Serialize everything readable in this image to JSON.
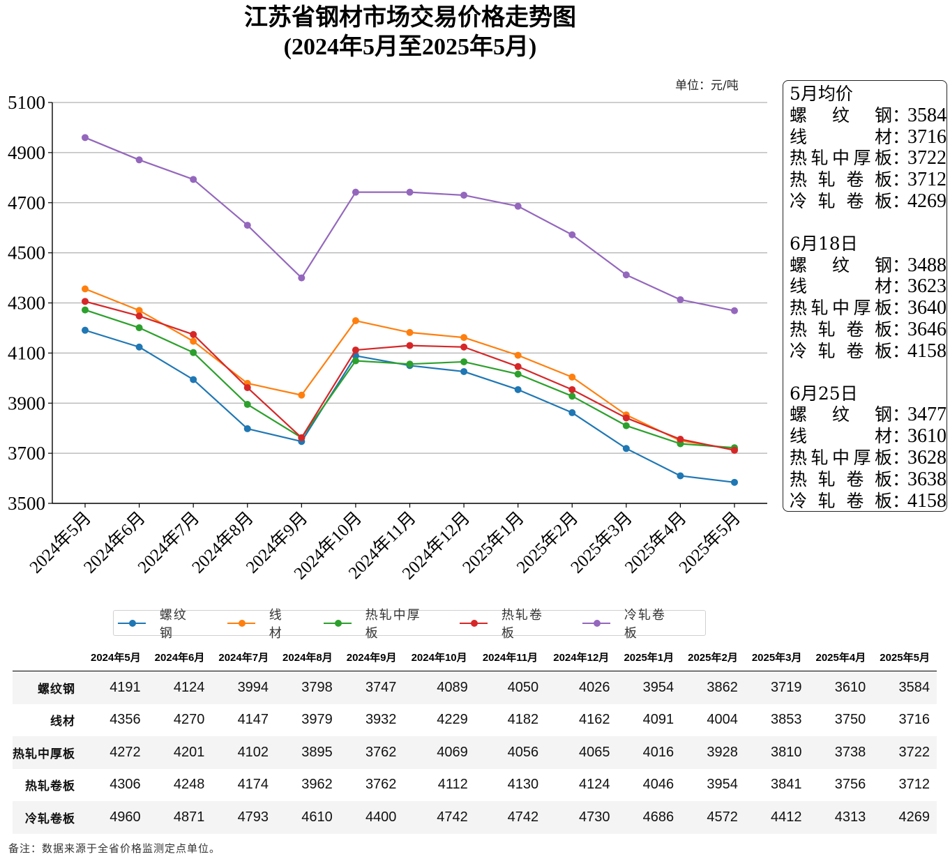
{
  "chart_data": {
    "type": "line",
    "title": "江苏省钢材市场交易价格走势图",
    "subtitle": "(2024年5月至2025年5月)",
    "unit_label": "单位：元/吨",
    "xlabel": "",
    "ylabel": "",
    "ylim": [
      3500,
      5100
    ],
    "yticks": [
      3500,
      3700,
      3900,
      4100,
      4300,
      4500,
      4700,
      4900,
      5100
    ],
    "grid": "horizontal",
    "legend_position": "bottom",
    "categories": [
      "2024年5月",
      "2024年6月",
      "2024年7月",
      "2024年8月",
      "2024年9月",
      "2024年10月",
      "2024年11月",
      "2024年12月",
      "2025年1月",
      "2025年2月",
      "2025年3月",
      "2025年4月",
      "2025年5月"
    ],
    "series": [
      {
        "name": "螺纹钢",
        "color": "#1f77b4",
        "values": [
          4191,
          4124,
          3994,
          3798,
          3747,
          4089,
          4050,
          4026,
          3954,
          3862,
          3719,
          3610,
          3584
        ]
      },
      {
        "name": "线材",
        "color": "#ff7f0e",
        "values": [
          4356,
          4270,
          4147,
          3979,
          3932,
          4229,
          4182,
          4162,
          4091,
          4004,
          3853,
          3750,
          3716
        ]
      },
      {
        "name": "热轧中厚板",
        "color": "#2ca02c",
        "values": [
          4272,
          4201,
          4102,
          3895,
          3762,
          4069,
          4056,
          4065,
          4016,
          3928,
          3810,
          3738,
          3722
        ]
      },
      {
        "name": "热轧卷板",
        "color": "#d62728",
        "values": [
          4306,
          4248,
          4174,
          3962,
          3762,
          4112,
          4130,
          4124,
          4046,
          3954,
          3841,
          3756,
          3712
        ]
      },
      {
        "name": "冷轧卷板",
        "color": "#9467bd",
        "values": [
          4960,
          4871,
          4793,
          4610,
          4400,
          4742,
          4742,
          4730,
          4686,
          4572,
          4412,
          4313,
          4269
        ]
      }
    ]
  },
  "info_box": {
    "sections": [
      {
        "heading": "5月均价",
        "rows": [
          {
            "name": [
              "螺",
              "纹",
              "钢"
            ],
            "value": "3584"
          },
          {
            "name": [
              "线",
              "材"
            ],
            "value": "3716"
          },
          {
            "name": [
              "热",
              "轧",
              "中",
              "厚",
              "板"
            ],
            "value": "3722"
          },
          {
            "name": [
              "热",
              "轧",
              "卷",
              "板"
            ],
            "value": "3712"
          },
          {
            "name": [
              "冷",
              "轧",
              "卷",
              "板"
            ],
            "value": "4269"
          }
        ]
      },
      {
        "heading": "6月18日",
        "rows": [
          {
            "name": [
              "螺",
              "纹",
              "钢"
            ],
            "value": "3488"
          },
          {
            "name": [
              "线",
              "材"
            ],
            "value": "3623"
          },
          {
            "name": [
              "热",
              "轧",
              "中",
              "厚",
              "板"
            ],
            "value": "3640"
          },
          {
            "name": [
              "热",
              "轧",
              "卷",
              "板"
            ],
            "value": "3646"
          },
          {
            "name": [
              "冷",
              "轧",
              "卷",
              "板"
            ],
            "value": "4158"
          }
        ]
      },
      {
        "heading": "6月25日",
        "rows": [
          {
            "name": [
              "螺",
              "纹",
              "钢"
            ],
            "value": "3477"
          },
          {
            "name": [
              "线",
              "材"
            ],
            "value": "3610"
          },
          {
            "name": [
              "热",
              "轧",
              "中",
              "厚",
              "板"
            ],
            "value": "3628"
          },
          {
            "name": [
              "热",
              "轧",
              "卷",
              "板"
            ],
            "value": "3638"
          },
          {
            "name": [
              "冷",
              "轧",
              "卷",
              "板"
            ],
            "value": "4158"
          }
        ]
      }
    ],
    "colon": "："
  },
  "table": {
    "columns": [
      "2024年5月",
      "2024年6月",
      "2024年7月",
      "2024年8月",
      "2024年9月",
      "2024年10月",
      "2024年11月",
      "2024年12月",
      "2025年1月",
      "2025年2月",
      "2025年3月",
      "2025年4月",
      "2025年5月"
    ],
    "rows": [
      {
        "label": "螺纹钢",
        "values": [
          "4191",
          "4124",
          "3994",
          "3798",
          "3747",
          "4089",
          "4050",
          "4026",
          "3954",
          "3862",
          "3719",
          "3610",
          "3584"
        ]
      },
      {
        "label": "线材",
        "values": [
          "4356",
          "4270",
          "4147",
          "3979",
          "3932",
          "4229",
          "4182",
          "4162",
          "4091",
          "4004",
          "3853",
          "3750",
          "3716"
        ]
      },
      {
        "label": "热轧中厚板",
        "values": [
          "4272",
          "4201",
          "4102",
          "3895",
          "3762",
          "4069",
          "4056",
          "4065",
          "4016",
          "3928",
          "3810",
          "3738",
          "3722"
        ]
      },
      {
        "label": "热轧卷板",
        "values": [
          "4306",
          "4248",
          "4174",
          "3962",
          "3762",
          "4112",
          "4130",
          "4124",
          "4046",
          "3954",
          "3841",
          "3756",
          "3712"
        ]
      },
      {
        "label": "冷轧卷板",
        "values": [
          "4960",
          "4871",
          "4793",
          "4610",
          "4400",
          "4742",
          "4742",
          "4730",
          "4686",
          "4572",
          "4412",
          "4313",
          "4269"
        ]
      }
    ]
  },
  "note": "备注：数据来源于全省价格监测定点单位。"
}
